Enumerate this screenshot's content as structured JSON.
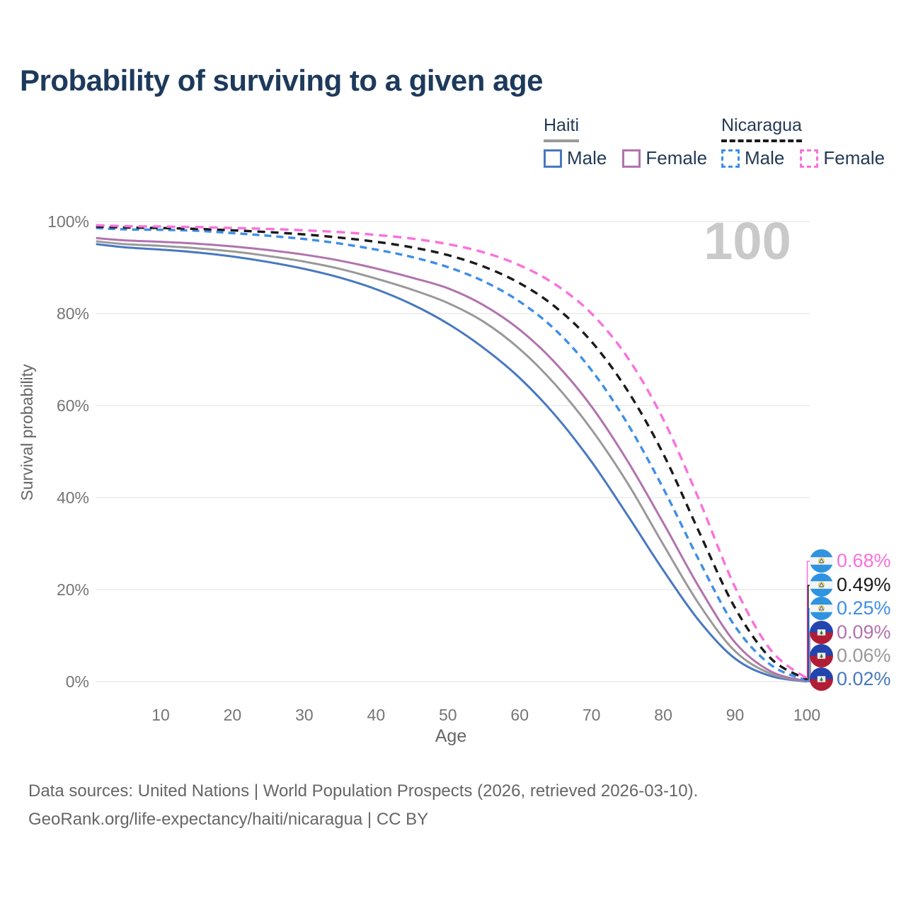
{
  "title": "Probability of surviving to a given age",
  "watermark": "100",
  "legend": {
    "haiti": {
      "label": "Haiti",
      "items": [
        {
          "label": "Male"
        },
        {
          "label": "Female"
        }
      ]
    },
    "nicaragua": {
      "label": "Nicaragua",
      "items": [
        {
          "label": "Male"
        },
        {
          "label": "Female"
        }
      ]
    }
  },
  "axes": {
    "x_label": "Age",
    "y_label": "Survival probability",
    "x_ticks": [
      10,
      20,
      30,
      40,
      50,
      60,
      70,
      80,
      90,
      100
    ],
    "y_ticks": [
      "0%",
      "20%",
      "40%",
      "60%",
      "80%",
      "100%"
    ]
  },
  "footer": {
    "line1": "Data sources: United Nations | World Population Prospects (2026, retrieved 2026-03-10).",
    "line2": "GeoRank.org/life-expectancy/haiti/nicaragua | CC BY"
  },
  "chart_data": {
    "type": "line",
    "title": "Probability of surviving to a given age",
    "xlabel": "Age",
    "ylabel": "Survival probability",
    "xlim": [
      1,
      100
    ],
    "ylim": [
      0,
      100
    ],
    "grid": "horizontal-only",
    "legend_position": "top-right",
    "x": [
      1,
      5,
      10,
      15,
      20,
      25,
      30,
      35,
      40,
      45,
      50,
      55,
      60,
      65,
      70,
      75,
      80,
      85,
      90,
      95,
      100
    ],
    "series": [
      {
        "id": "haiti-male",
        "name": "Haiti Male",
        "country": "Haiti",
        "sex": "Male",
        "color": "#4878c0",
        "dash": "",
        "values": [
          95.1,
          94.4,
          93.9,
          93.3,
          92.4,
          91.2,
          89.7,
          87.8,
          85.3,
          82.0,
          77.8,
          72.5,
          66.0,
          57.8,
          47.8,
          36.2,
          24.2,
          13.2,
          5.0,
          1.2,
          0.02
        ]
      },
      {
        "id": "haiti-both",
        "name": "Haiti",
        "country": "Haiti",
        "sex": "Both",
        "color": "#999999",
        "dash": "",
        "values": [
          95.7,
          95.1,
          94.7,
          94.2,
          93.5,
          92.5,
          91.3,
          89.7,
          87.6,
          85.2,
          82.3,
          78.2,
          72.3,
          64.5,
          54.8,
          43.2,
          29.8,
          16.8,
          6.6,
          1.7,
          0.06
        ]
      },
      {
        "id": "haiti-female",
        "name": "Haiti Female",
        "country": "Haiti",
        "sex": "Female",
        "color": "#b173ae",
        "dash": "",
        "values": [
          96.4,
          95.9,
          95.6,
          95.2,
          94.6,
          93.8,
          92.8,
          91.5,
          89.8,
          87.8,
          85.5,
          81.8,
          76.5,
          69.2,
          59.8,
          48.0,
          34.5,
          20.5,
          8.5,
          2.2,
          0.09
        ]
      },
      {
        "id": "nicaragua-male",
        "name": "Nicaragua Male",
        "country": "Nicaragua",
        "sex": "Male",
        "color": "#3e8ee8",
        "dash": "10 7",
        "values": [
          98.6,
          98.3,
          98.2,
          98.0,
          97.5,
          96.9,
          96.2,
          95.2,
          93.9,
          92.3,
          90.1,
          87.0,
          82.6,
          76.4,
          67.7,
          56.1,
          42.0,
          26.3,
          12.0,
          3.6,
          0.25
        ]
      },
      {
        "id": "nicaragua-both",
        "name": "Nicaragua",
        "country": "Nicaragua",
        "sex": "Both",
        "color": "#1a1a1a",
        "dash": "11 8",
        "values": [
          98.9,
          98.7,
          98.6,
          98.4,
          98.1,
          97.7,
          97.2,
          96.5,
          95.6,
          94.4,
          92.7,
          90.2,
          86.6,
          81.4,
          73.9,
          63.3,
          49.5,
          32.5,
          16.0,
          5.0,
          0.49
        ]
      },
      {
        "id": "nicaragua-female",
        "name": "Nicaragua Female",
        "country": "Nicaragua",
        "sex": "Female",
        "color": "#fb70dc",
        "dash": "12 8",
        "values": [
          99.2,
          99.0,
          98.9,
          98.8,
          98.6,
          98.4,
          98.1,
          97.7,
          97.1,
          96.3,
          95.1,
          93.3,
          90.5,
          86.3,
          80.0,
          70.5,
          57.0,
          39.5,
          20.5,
          6.8,
          0.68
        ]
      }
    ],
    "end_labels": [
      {
        "value": "0.68%",
        "color": "#fb70dc",
        "flag": "nicaragua-flag",
        "series": "Nicaragua Female"
      },
      {
        "value": "0.49%",
        "color": "#1a1a1a",
        "flag": "nicaragua-flag",
        "series": "Nicaragua"
      },
      {
        "value": "0.25%",
        "color": "#3e8ee8",
        "flag": "nicaragua-flag",
        "series": "Nicaragua Male"
      },
      {
        "value": "0.09%",
        "color": "#b173ae",
        "flag": "haiti-flag",
        "series": "Haiti Female"
      },
      {
        "value": "0.06%",
        "color": "#999999",
        "flag": "haiti-flag",
        "series": "Haiti"
      },
      {
        "value": "0.02%",
        "color": "#4878c0",
        "flag": "haiti-flag",
        "series": "Haiti Male"
      }
    ]
  }
}
